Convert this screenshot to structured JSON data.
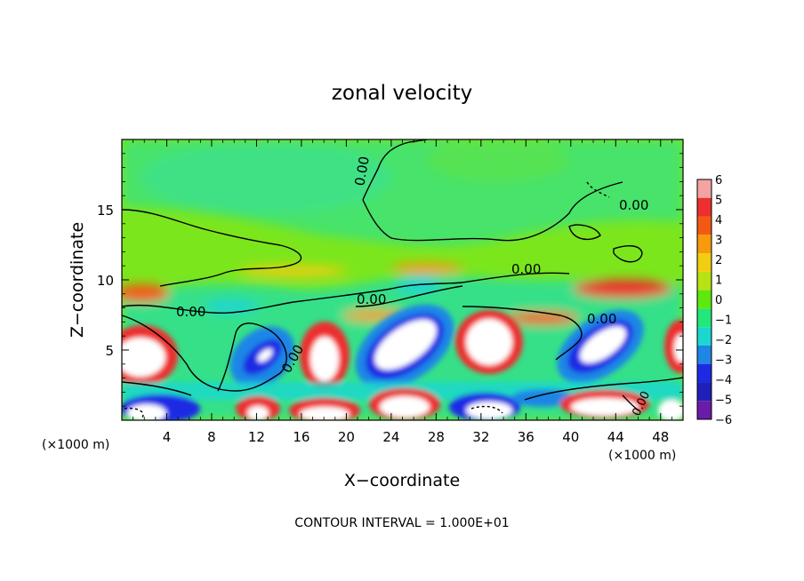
{
  "chart_data": {
    "type": "heatmap",
    "title": "zonal velocity",
    "xlabel": "X−coordinate",
    "ylabel": "Z−coordinate",
    "x_unit_left": "(×1000 m)",
    "x_unit_right": "(×1000 m)",
    "xlim": [
      0,
      50
    ],
    "ylim": [
      0,
      20
    ],
    "x_ticks": [
      4,
      8,
      12,
      16,
      20,
      24,
      28,
      32,
      36,
      40,
      44,
      48
    ],
    "y_ticks": [
      5,
      10,
      15
    ],
    "x_tick_labels": [
      "4",
      "8",
      "12",
      "16",
      "20",
      "24",
      "28",
      "32",
      "36",
      "40",
      "44",
      "48"
    ],
    "y_tick_labels": [
      "5",
      "10",
      "15"
    ],
    "colorbar": {
      "levels": [
        6,
        5,
        4,
        3,
        2,
        1,
        0,
        -1,
        -2,
        -3,
        -4,
        -5,
        -6
      ],
      "labels": [
        "6",
        "5",
        "4",
        "3",
        "2",
        "1",
        "0",
        "−1",
        "−2",
        "−3",
        "−4",
        "−5",
        "−6"
      ],
      "colors": [
        "#f4a3a3",
        "#ee2f2f",
        "#f25a14",
        "#f79a0c",
        "#f2cd10",
        "#b9e214",
        "#5fe80f",
        "#22e87a",
        "#1bd7d0",
        "#1f86e6",
        "#1c2ae4",
        "#2020b8",
        "#6a1ba8"
      ]
    },
    "contour_labels": [
      "0.00",
      "0.00",
      "0.00",
      "0.00",
      "0.00",
      "0.00",
      "0.00",
      "0.00"
    ],
    "footer_text": "CONTOUR INTERVAL = 1.000E+01",
    "grid": false,
    "legend": "colorbar-right"
  },
  "colors": {
    "background": "#ffffff",
    "field_base": "#7ce61c",
    "upper_region": "#46e36a",
    "white_extreme": "#ffffff"
  }
}
